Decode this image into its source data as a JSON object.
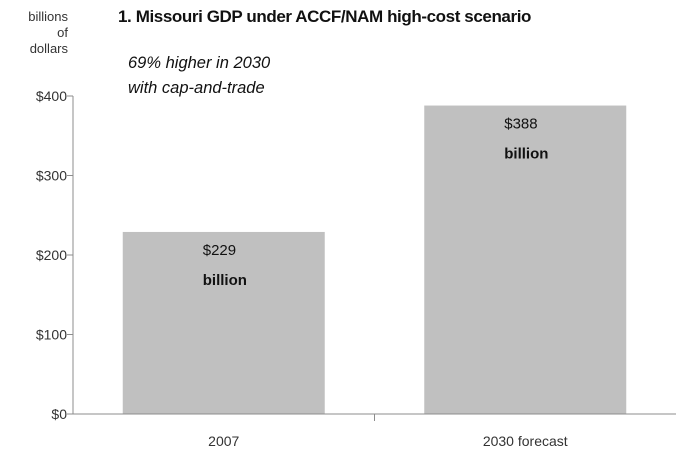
{
  "chart_data": {
    "type": "bar",
    "title": "1. Missouri GDP under ACCF/NAM high-cost scenario",
    "ylabel": [
      "billions",
      "of",
      "dollars"
    ],
    "xlabel": "",
    "annotation": [
      "69% higher in 2030",
      "with cap-and-trade"
    ],
    "categories": [
      "2007",
      "2030 forecast"
    ],
    "values": [
      229,
      388
    ],
    "value_labels": [
      [
        "$229",
        "billion"
      ],
      [
        "$388",
        "billion"
      ]
    ],
    "ylim": [
      0,
      400
    ],
    "yticks": [
      0,
      100,
      200,
      300,
      400
    ],
    "ytick_labels": [
      "$0",
      "$100",
      "$200",
      "$300",
      "$400"
    ],
    "grid": false,
    "legend": "none",
    "bar_color": "#c0c0c0",
    "axis_color": "#8c8c8c"
  }
}
